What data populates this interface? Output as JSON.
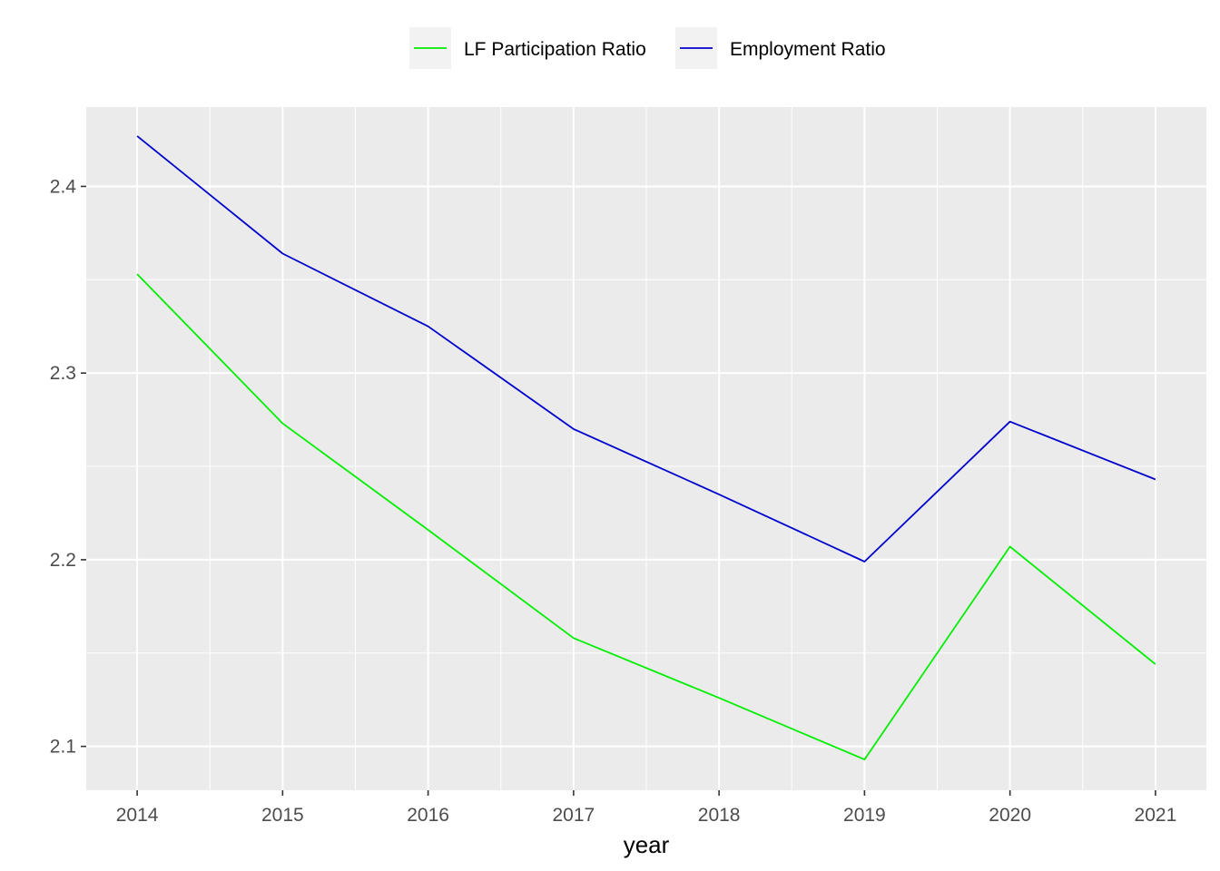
{
  "chart_data": {
    "type": "line",
    "title": "",
    "xlabel": "year",
    "ylabel": "",
    "x": [
      2014,
      2015,
      2016,
      2017,
      2018,
      2019,
      2020,
      2021
    ],
    "xlim": [
      2013.65,
      2021.35
    ],
    "ylim": [
      2.0765,
      2.4425
    ],
    "x_ticks": [
      "2014",
      "2015",
      "2016",
      "2017",
      "2018",
      "2019",
      "2020",
      "2021"
    ],
    "y_ticks": [
      "2.1",
      "2.2",
      "2.3",
      "2.4"
    ],
    "grid": true,
    "legend_position": "top",
    "series": [
      {
        "name": "LF Participation Ratio",
        "color": "#00ee00",
        "values": [
          2.353,
          2.273,
          2.216,
          2.158,
          2.126,
          2.093,
          2.207,
          2.144
        ]
      },
      {
        "name": "Employment Ratio",
        "color": "#0000cd",
        "values": [
          2.427,
          2.364,
          2.325,
          2.27,
          2.235,
          2.199,
          2.274,
          2.243
        ]
      }
    ]
  }
}
